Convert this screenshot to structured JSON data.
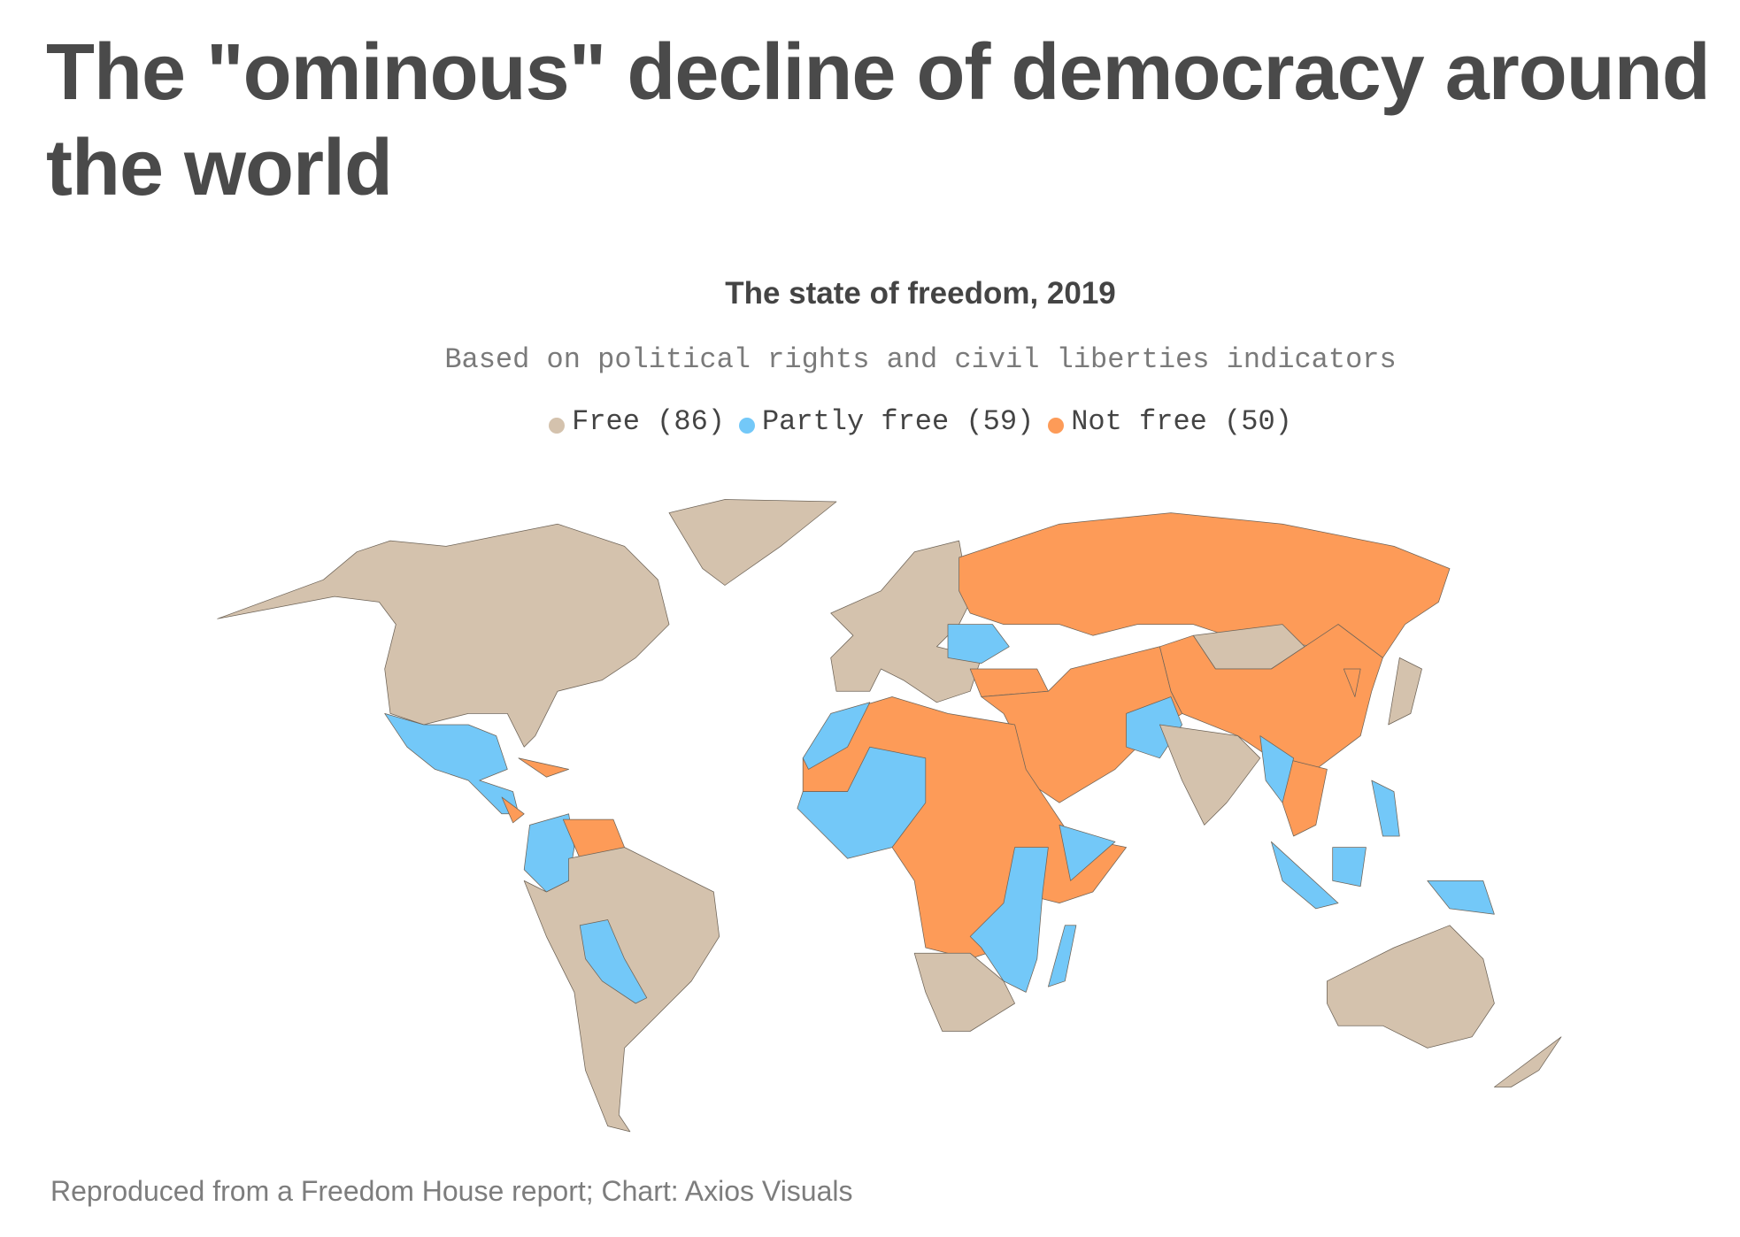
{
  "header": {
    "title": "The \"ominous\" decline of democracy around the world"
  },
  "chart_data": {
    "type": "choropleth-map",
    "title": "The state of freedom, 2019",
    "subtitle": "Based on political rights and civil liberties indicators",
    "legend": [
      {
        "label": "Free (86)",
        "category": "Free",
        "count": 86,
        "color": "#d4c2ad"
      },
      {
        "label": "Partly free (59)",
        "category": "Partly free",
        "count": 59,
        "color": "#73c8f8"
      },
      {
        "label": "Not free (50)",
        "category": "Not free",
        "count": 50,
        "color": "#fd9b58"
      }
    ],
    "legend_position": "top-center",
    "regions": [
      {
        "name": "north-america",
        "status": "Free"
      },
      {
        "name": "greenland",
        "status": "Free"
      },
      {
        "name": "mexico-central-america",
        "status": "Partly free"
      },
      {
        "name": "nicaragua",
        "status": "Not free"
      },
      {
        "name": "cuba",
        "status": "Not free"
      },
      {
        "name": "colombia",
        "status": "Partly free"
      },
      {
        "name": "venezuela",
        "status": "Not free"
      },
      {
        "name": "south-america",
        "status": "Free"
      },
      {
        "name": "bolivia-paraguay",
        "status": "Partly free"
      },
      {
        "name": "europe",
        "status": "Free"
      },
      {
        "name": "russia",
        "status": "Not free"
      },
      {
        "name": "ukraine",
        "status": "Partly free"
      },
      {
        "name": "turkey",
        "status": "Not free"
      },
      {
        "name": "middle-east-central-asia",
        "status": "Not free"
      },
      {
        "name": "mongolia",
        "status": "Free"
      },
      {
        "name": "china",
        "status": "Not free"
      },
      {
        "name": "pakistan",
        "status": "Partly free"
      },
      {
        "name": "india",
        "status": "Free"
      },
      {
        "name": "southeast-asia",
        "status": "Not free"
      },
      {
        "name": "myanmar",
        "status": "Partly free"
      },
      {
        "name": "sumatra",
        "status": "Partly free"
      },
      {
        "name": "borneo",
        "status": "Partly free"
      },
      {
        "name": "papua",
        "status": "Partly free"
      },
      {
        "name": "philippines",
        "status": "Partly free"
      },
      {
        "name": "japan",
        "status": "Free"
      },
      {
        "name": "north-korea",
        "status": "Not free"
      },
      {
        "name": "australia",
        "status": "Free"
      },
      {
        "name": "new-zealand",
        "status": "Free"
      },
      {
        "name": "north-central-africa",
        "status": "Not free"
      },
      {
        "name": "west-africa",
        "status": "Partly free"
      },
      {
        "name": "morocco",
        "status": "Partly free"
      },
      {
        "name": "east-africa",
        "status": "Partly free"
      },
      {
        "name": "southern-africa",
        "status": "Free"
      },
      {
        "name": "madagascar",
        "status": "Partly free"
      },
      {
        "name": "somalia",
        "status": "Partly free"
      }
    ]
  },
  "footer": {
    "source": "Reproduced from a Freedom House report; Chart: Axios Visuals"
  }
}
